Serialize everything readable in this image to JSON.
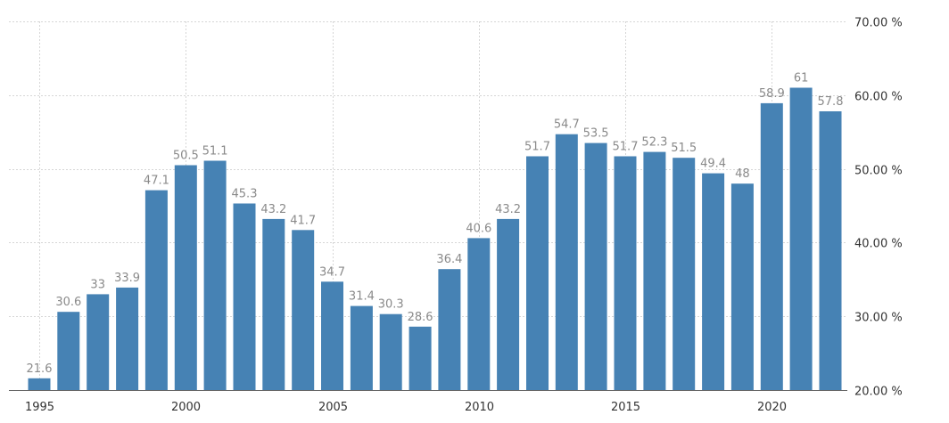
{
  "chart_data": {
    "type": "bar",
    "x": [
      1995,
      1996,
      1997,
      1998,
      1999,
      2000,
      2001,
      2002,
      2003,
      2004,
      2005,
      2006,
      2007,
      2008,
      2009,
      2010,
      2011,
      2012,
      2013,
      2014,
      2015,
      2016,
      2017,
      2018,
      2019,
      2020,
      2021,
      2022
    ],
    "values": [
      21.6,
      30.6,
      33,
      33.9,
      47.1,
      50.5,
      51.1,
      45.3,
      43.2,
      41.7,
      34.7,
      31.4,
      30.3,
      28.6,
      36.4,
      40.6,
      43.2,
      51.7,
      54.7,
      53.5,
      51.7,
      52.3,
      51.5,
      49.4,
      48,
      58.9,
      61,
      57.8
    ],
    "value_labels": [
      "21.6",
      "30.6",
      "33",
      "33.9",
      "47.1",
      "50.5",
      "51.1",
      "45.3",
      "43.2",
      "41.7",
      "34.7",
      "31.4",
      "30.3",
      "28.6",
      "36.4",
      "40.6",
      "43.2",
      "51.7",
      "54.7",
      "53.5",
      "51.7",
      "52.3",
      "51.5",
      "49.4",
      "48",
      "58.9",
      "61",
      "57.8"
    ],
    "xticks": [
      "1995",
      "2000",
      "2005",
      "2010",
      "2015",
      "2020"
    ],
    "xtick_years": [
      1995,
      2000,
      2005,
      2010,
      2015,
      2020
    ],
    "yticks": [
      20,
      30,
      40,
      50,
      60,
      70
    ],
    "ytick_labels": [
      "20.00 %",
      "30.00 %",
      "40.00 %",
      "50.00 %",
      "60.00 %",
      "70.00 %"
    ],
    "ylim": [
      20,
      70
    ],
    "y_axis_side": "right",
    "grid": true,
    "bar_color": "#4682b4",
    "label_color": "#8a8a8a",
    "title": "",
    "xlabel": "",
    "ylabel": ""
  }
}
